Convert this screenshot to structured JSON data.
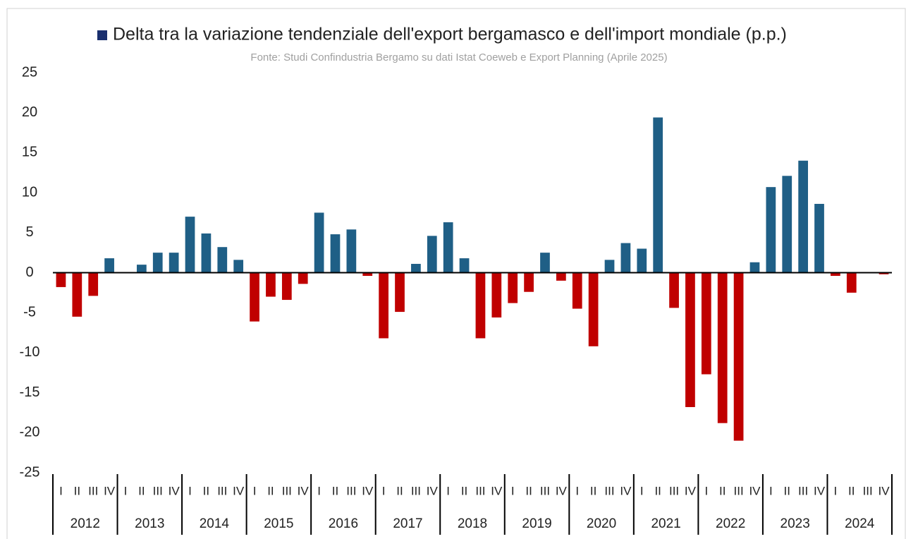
{
  "chart_data": {
    "type": "bar",
    "subtitle": "Fonte: Studi Confindustria Bergamo su dati Istat Coeweb e Export Planning (Aprile 2025)",
    "series": [
      {
        "name": "Delta tra la variazione tendenziale dell'export bergamasco e dell'import mondiale (p.p.)",
        "color": "#1a2f6e",
        "values": [
          -1.8,
          -5.5,
          -2.9,
          1.8,
          0,
          1.0,
          2.5,
          2.5,
          7.0,
          4.9,
          3.2,
          1.6,
          -6.1,
          -3.0,
          -3.4,
          -1.4,
          7.5,
          4.8,
          5.4,
          -0.4,
          -8.2,
          -4.9,
          1.1,
          4.6,
          6.3,
          1.8,
          -8.2,
          -5.6,
          -3.8,
          -2.4,
          2.5,
          -1.0,
          -4.5,
          -9.2,
          1.6,
          3.7,
          3.0,
          19.4,
          -4.4,
          -16.8,
          -12.7,
          -18.8,
          -21.0,
          1.3,
          10.7,
          12.1,
          14.0,
          8.6,
          -0.4,
          -2.5,
          0,
          -0.2
        ]
      }
    ],
    "positive_color": "#1f5f86",
    "negative_color": "#c00000",
    "categories": [
      "I",
      "II",
      "III",
      "IV",
      "I",
      "II",
      "III",
      "IV",
      "I",
      "II",
      "III",
      "IV",
      "I",
      "II",
      "III",
      "IV",
      "I",
      "II",
      "III",
      "IV",
      "I",
      "II",
      "III",
      "IV",
      "I",
      "II",
      "III",
      "IV",
      "I",
      "II",
      "III",
      "IV",
      "I",
      "II",
      "III",
      "IV",
      "I",
      "II",
      "III",
      "IV",
      "I",
      "II",
      "III",
      "IV",
      "I",
      "II",
      "III",
      "IV",
      "I",
      "II",
      "III",
      "IV"
    ],
    "years": [
      "2012",
      "2013",
      "2014",
      "2015",
      "2016",
      "2017",
      "2018",
      "2019",
      "2020",
      "2021",
      "2022",
      "2023",
      "2024"
    ],
    "ylim": [
      -25,
      25
    ],
    "yticks": [
      25,
      20,
      15,
      10,
      5,
      0,
      -5,
      -10,
      -15,
      -20,
      -25
    ],
    "grid": false
  }
}
